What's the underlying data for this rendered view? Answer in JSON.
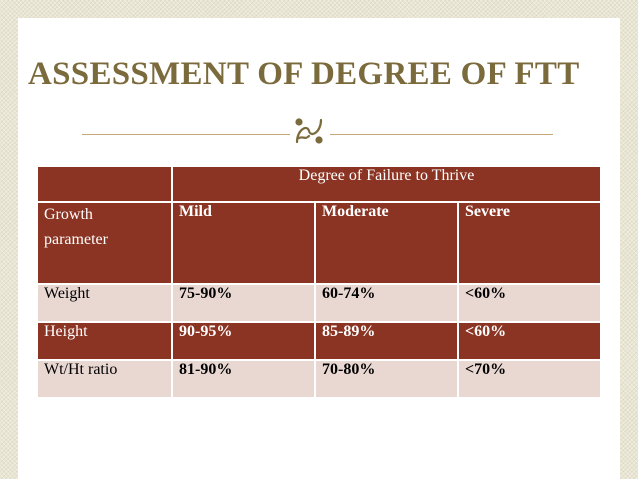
{
  "title": "ASSESSMENT OF DEGREE OF FTT",
  "table": {
    "header": "Degree of Failure to Thrive",
    "param_label_line1": "Growth",
    "param_label_line2": "parameter",
    "degrees": [
      "Mild",
      "Moderate",
      "Severe"
    ],
    "rows": [
      {
        "label": "Weight",
        "values": [
          "75-90%",
          "60-74%",
          "<60%"
        ]
      },
      {
        "label": "Height",
        "values": [
          "90-95%",
          "85-89%",
          "<60%"
        ]
      },
      {
        "label": "Wt/Ht ratio",
        "values": [
          "81-90%",
          "70-80%",
          "<70%"
        ]
      }
    ]
  },
  "colors": {
    "title": "#7b6a3c",
    "table_dark": "#8b3423",
    "table_light": "#e9d7d2",
    "divider": "#c6a877"
  },
  "icons": {
    "divider_ornament": "ornament-icon"
  }
}
